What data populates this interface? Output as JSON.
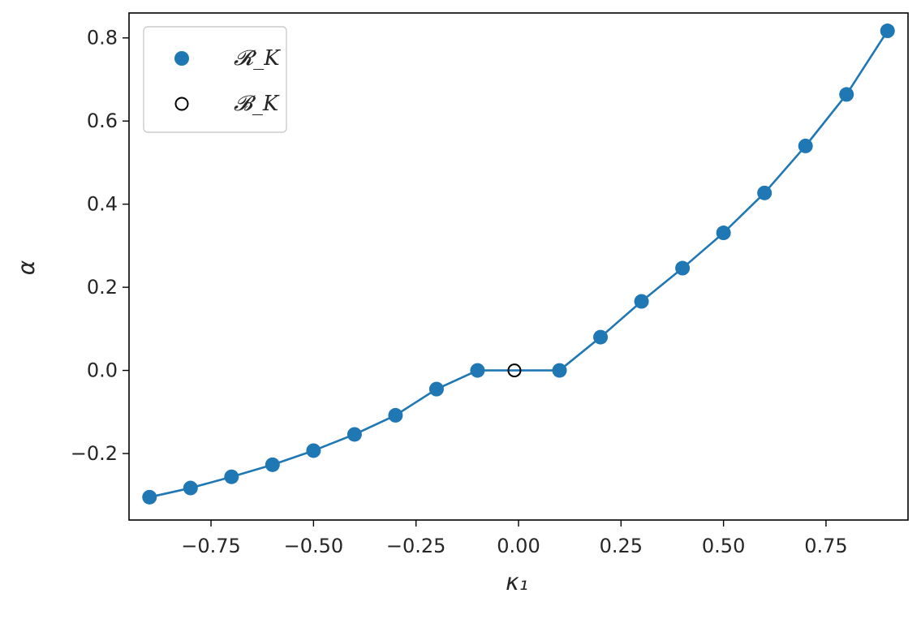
{
  "chart_data": {
    "type": "scatter",
    "xlabel": "κ₁",
    "ylabel": "α",
    "xlim": [
      -0.95,
      0.95
    ],
    "ylim": [
      -0.36,
      0.86
    ],
    "x_ticks": [
      -0.75,
      -0.5,
      -0.25,
      0.0,
      0.25,
      0.5,
      0.75
    ],
    "x_tick_labels": [
      "−0.75",
      "−0.50",
      "−0.25",
      "0.00",
      "0.25",
      "0.50",
      "0.75"
    ],
    "y_ticks": [
      -0.2,
      0.0,
      0.2,
      0.4,
      0.6,
      0.8
    ],
    "y_tick_labels": [
      "−0.2",
      "0.0",
      "0.2",
      "0.4",
      "0.6",
      "0.8"
    ],
    "grid": false,
    "legend_position": "top-left",
    "series": [
      {
        "name": "𝓡_K",
        "marker": "filled-circle",
        "line": true,
        "color": "#1f77b4",
        "x": [
          -0.9,
          -0.8,
          -0.7,
          -0.6,
          -0.5,
          -0.4,
          -0.3,
          -0.2,
          -0.1,
          0.1,
          0.2,
          0.3,
          0.4,
          0.5,
          0.6,
          0.7,
          0.8,
          0.9
        ],
        "y": [
          -0.305,
          -0.283,
          -0.256,
          -0.227,
          -0.193,
          -0.154,
          -0.108,
          -0.045,
          0.0,
          0.0,
          0.08,
          0.166,
          0.246,
          0.331,
          0.427,
          0.54,
          0.664,
          0.817
        ]
      },
      {
        "name": "𝓑_K",
        "marker": "open-circle",
        "line": false,
        "color": "#000000",
        "x": [
          -0.01
        ],
        "y": [
          0.0
        ]
      }
    ],
    "line_path": {
      "x": [
        -0.9,
        -0.8,
        -0.7,
        -0.6,
        -0.5,
        -0.4,
        -0.3,
        -0.2,
        -0.1,
        0.1,
        0.2,
        0.3,
        0.4,
        0.5,
        0.6,
        0.7,
        0.8,
        0.9
      ],
      "y": [
        -0.305,
        -0.283,
        -0.256,
        -0.227,
        -0.193,
        -0.154,
        -0.108,
        -0.045,
        0.0,
        0.0,
        0.08,
        0.166,
        0.246,
        0.331,
        0.427,
        0.54,
        0.664,
        0.817
      ]
    }
  }
}
